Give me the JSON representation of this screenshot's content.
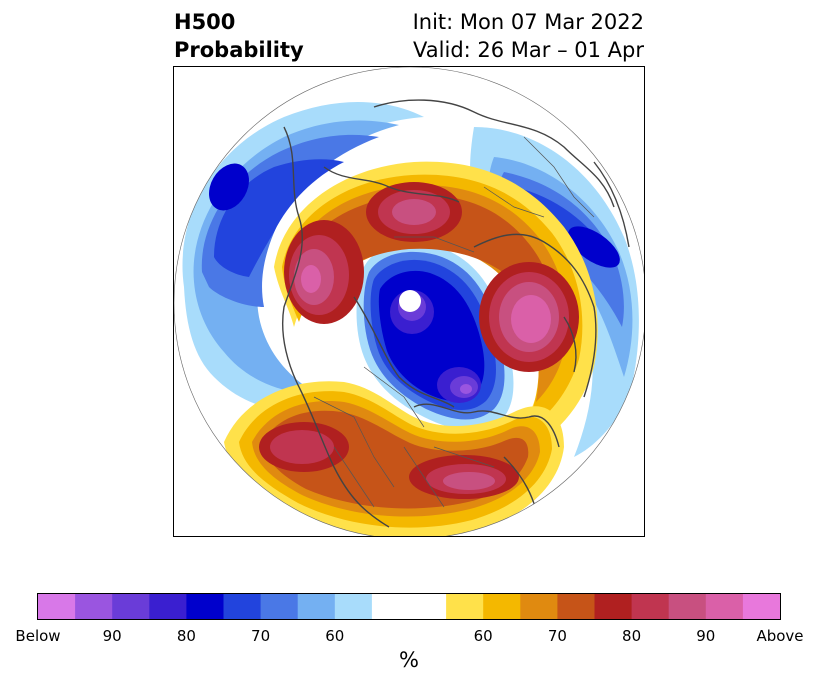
{
  "title": {
    "left_line1": "H500",
    "left_line2": "Probability",
    "right_line1": "Init: Mon 07 Mar 2022",
    "right_line2": "Valid: 26 Mar – 01 Apr"
  },
  "colorbar": {
    "unit": "%",
    "tick_labels": [
      "Below",
      "90",
      "80",
      "70",
      "60",
      "",
      "60",
      "70",
      "80",
      "90",
      "Above"
    ],
    "colors": [
      "#d878e8",
      "#9a55e0",
      "#6a3cd8",
      "#3a1fd0",
      "#0000cc",
      "#2244dd",
      "#4a78e6",
      "#74b0f2",
      "#a8dcfb",
      "#ffffff",
      "#ffffff",
      "#ffe14a",
      "#f4b800",
      "#e08a10",
      "#c65418",
      "#b02020",
      "#c03550",
      "#c85080",
      "#da60a8",
      "#e878dc"
    ]
  },
  "map": {
    "projection": "north-polar-stereographic",
    "features": [
      "coastlines",
      "country-borders",
      "state-borders"
    ]
  }
}
